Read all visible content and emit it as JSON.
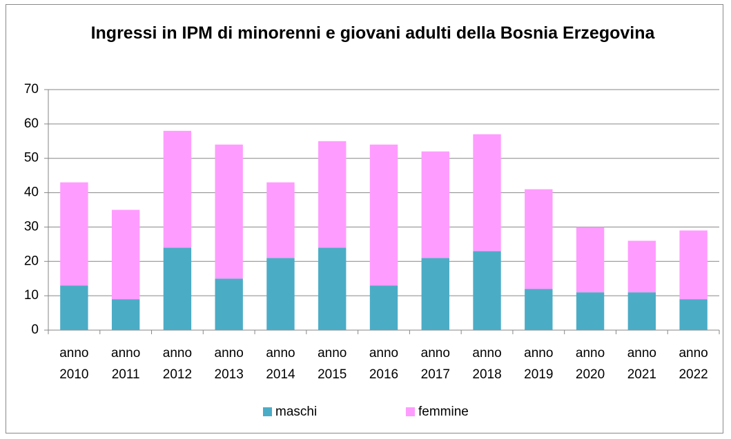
{
  "chart_data": {
    "type": "stacked_bar",
    "title": "Ingressi in IPM di minorenni e giovani adulti della Bosnia Erzegovina",
    "categories": [
      "anno 2010",
      "anno 2011",
      "anno 2012",
      "anno 2013",
      "anno 2014",
      "anno 2015",
      "anno 2016",
      "anno 2017",
      "anno 2018",
      "anno 2019",
      "anno 2020",
      "anno 2021",
      "anno 2022"
    ],
    "series": [
      {
        "name": "maschi",
        "color": "#4bacc6",
        "values": [
          13,
          9,
          24,
          15,
          21,
          24,
          13,
          21,
          23,
          12,
          11,
          11,
          9
        ]
      },
      {
        "name": "femmine",
        "color": "#ff9cff",
        "values": [
          30,
          26,
          34,
          39,
          22,
          31,
          41,
          31,
          34,
          29,
          19,
          15,
          20
        ]
      }
    ],
    "ylim": [
      0,
      70
    ],
    "yticks": [
      0,
      10,
      20,
      30,
      40,
      50,
      60,
      70
    ],
    "grid": true,
    "legend": "bottom"
  }
}
